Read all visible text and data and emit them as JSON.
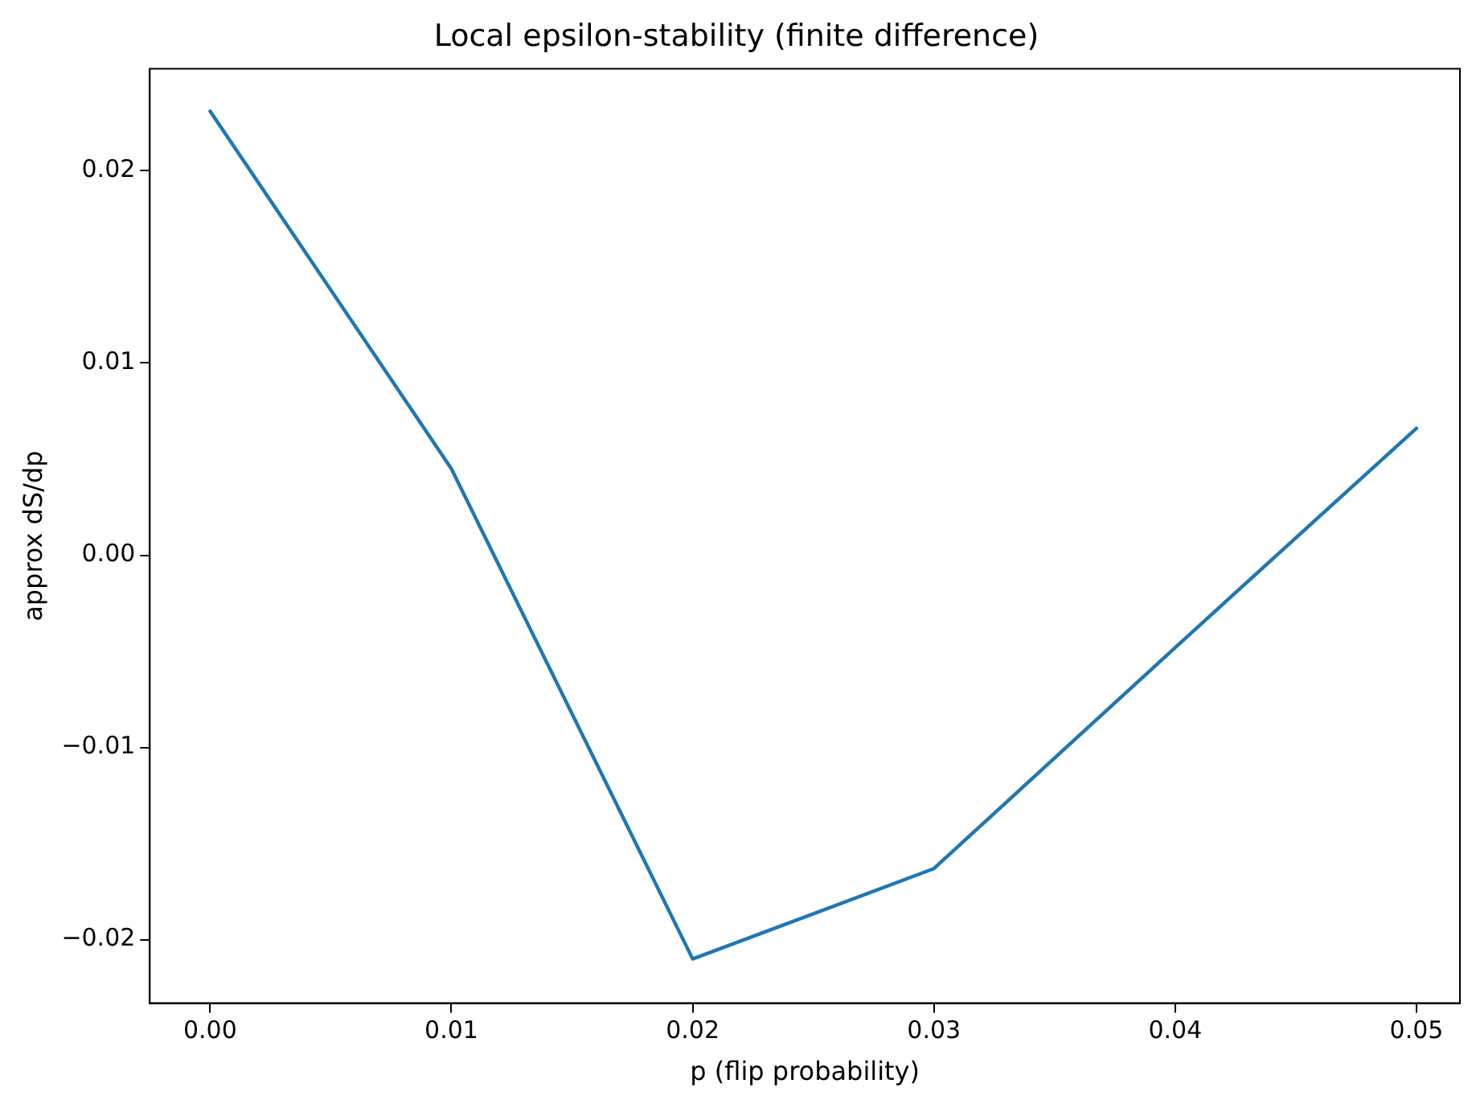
{
  "chart_data": {
    "type": "line",
    "title": "Local epsilon-stability (finite difference)",
    "xlabel": "p (flip probability)",
    "ylabel": "approx dS/dp",
    "x": [
      0,
      0.01,
      0.02,
      0.03,
      0.04,
      0.05
    ],
    "series": [
      {
        "color": "#1f77b4",
        "values": [
          0.0231,
          0.0045,
          -0.021,
          -0.0163,
          -0.0048,
          0.0066
        ]
      }
    ],
    "xlim": [
      -0.0025,
      0.0518
    ],
    "xticks": [
      {
        "value": 0,
        "label": "0.00"
      },
      {
        "value": 0.01,
        "label": "0.01"
      },
      {
        "value": 0.02,
        "label": "0.02"
      },
      {
        "value": 0.03,
        "label": "0.03"
      },
      {
        "value": 0.04,
        "label": "0.04"
      },
      {
        "value": 0.05,
        "label": "0.05"
      }
    ],
    "ylim": [
      -0.0233,
      0.0253
    ],
    "yticks": [
      {
        "value": -0.02,
        "label": "−0.02"
      },
      {
        "value": -0.01,
        "label": "−0.01"
      },
      {
        "value": 0,
        "label": "0.00"
      },
      {
        "value": 0.01,
        "label": "0.01"
      },
      {
        "value": 0.02,
        "label": "0.02"
      }
    ],
    "grid": false,
    "legend": false,
    "marker": "none",
    "line_style": "solid"
  }
}
